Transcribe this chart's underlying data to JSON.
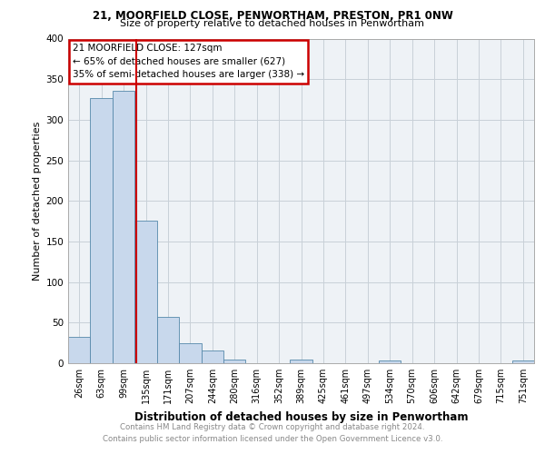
{
  "title1": "21, MOORFIELD CLOSE, PENWORTHAM, PRESTON, PR1 0NW",
  "title2": "Size of property relative to detached houses in Penwortham",
  "xlabel": "Distribution of detached houses by size in Penwortham",
  "ylabel": "Number of detached properties",
  "categories": [
    "26sqm",
    "63sqm",
    "99sqm",
    "135sqm",
    "171sqm",
    "207sqm",
    "244sqm",
    "280sqm",
    "316sqm",
    "352sqm",
    "389sqm",
    "425sqm",
    "461sqm",
    "497sqm",
    "534sqm",
    "570sqm",
    "606sqm",
    "642sqm",
    "679sqm",
    "715sqm",
    "751sqm"
  ],
  "values": [
    33,
    327,
    336,
    176,
    57,
    25,
    16,
    5,
    0,
    0,
    4,
    0,
    0,
    0,
    3,
    0,
    0,
    0,
    0,
    0,
    3
  ],
  "bar_color": "#c8d8ec",
  "bar_edge_color": "#5588aa",
  "property_line_x": 2.55,
  "annotation_line1": "21 MOORFIELD CLOSE: 127sqm",
  "annotation_line2": "← 65% of detached houses are smaller (627)",
  "annotation_line3": "35% of semi-detached houses are larger (338) →",
  "annotation_box_edge_color": "#cc0000",
  "grid_color": "#c8d0d8",
  "background_color": "#eef2f6",
  "footer_line1": "Contains HM Land Registry data © Crown copyright and database right 2024.",
  "footer_line2": "Contains public sector information licensed under the Open Government Licence v3.0.",
  "ylim": [
    0,
    400
  ],
  "yticks": [
    0,
    50,
    100,
    150,
    200,
    250,
    300,
    350,
    400
  ]
}
